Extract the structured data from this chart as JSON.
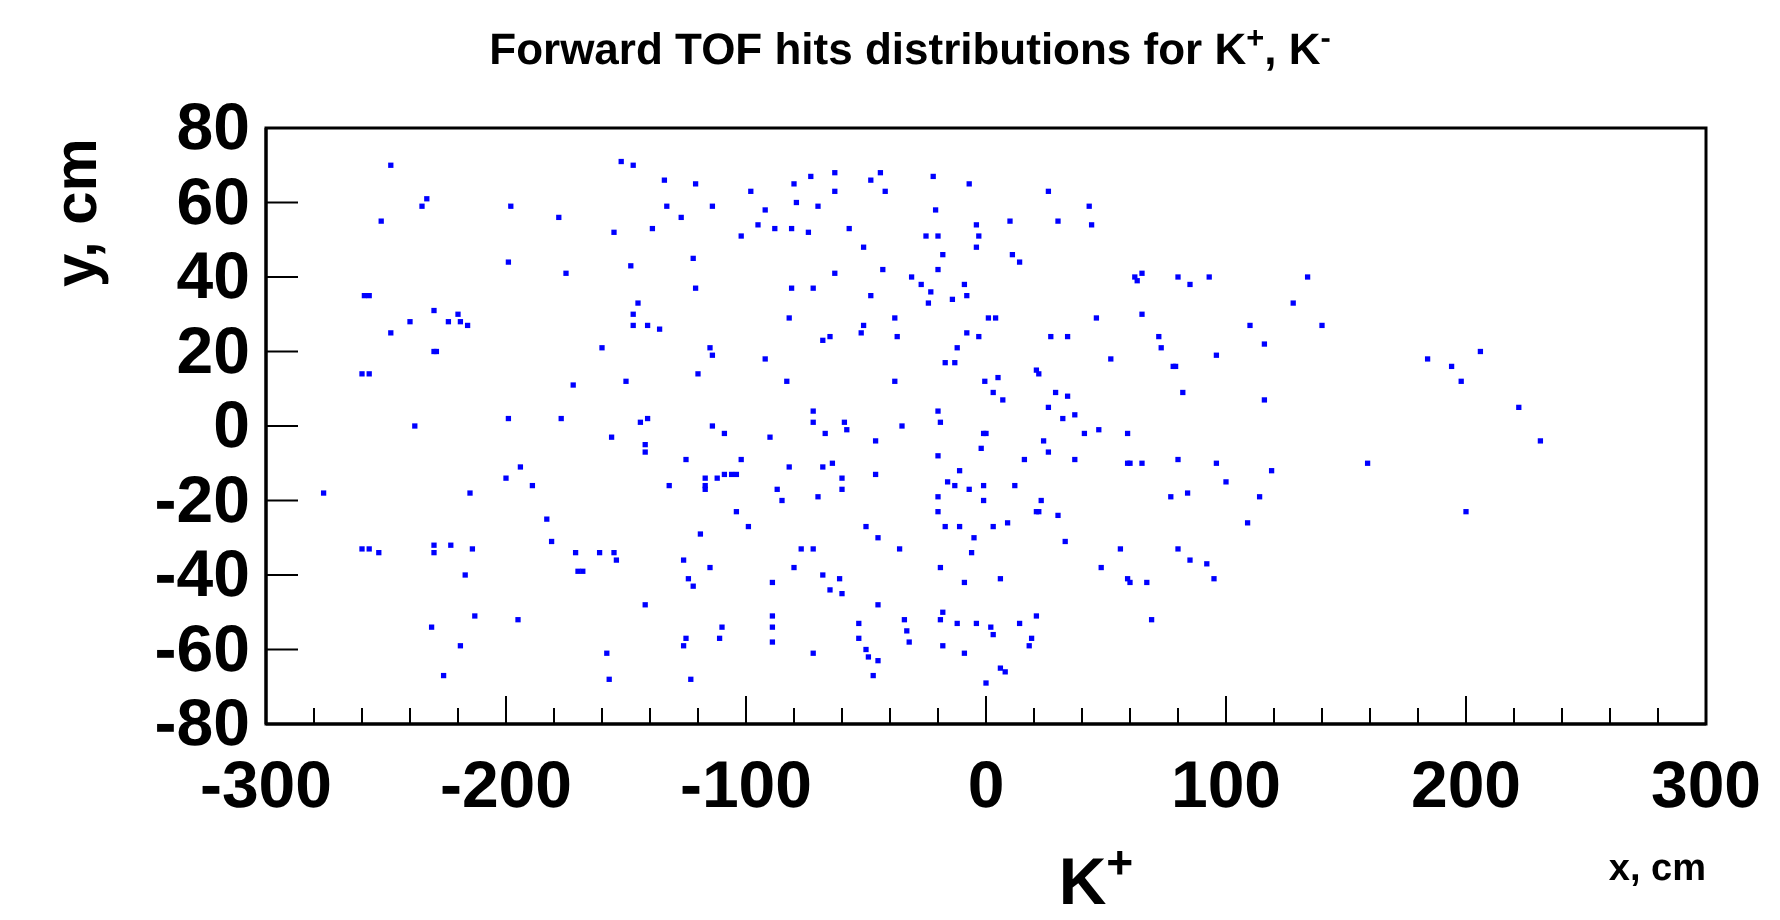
{
  "chart_data": {
    "type": "scatter",
    "title": "Forward TOF hits distributions for K$^{+}$, K$^{-}$",
    "xlabel": "x, cm",
    "ylabel": "y, cm",
    "annotations": [
      "K$^{+}$"
    ],
    "xlim": [
      -300,
      300
    ],
    "ylim": [
      -80,
      80
    ],
    "xticks": [
      -300,
      {
        "value": -280,
        "label": null
      },
      {
        "value": -260,
        "label": null
      },
      {
        "value": -240,
        "label": null
      },
      {
        "value": -220,
        "label": null
      },
      -200,
      {
        "value": -180,
        "label": null
      },
      {
        "value": -160,
        "label": null
      },
      {
        "value": -140,
        "label": null
      },
      {
        "value": -120,
        "label": null
      },
      -100,
      {
        "value": -80,
        "label": null
      },
      {
        "value": -60,
        "label": null
      },
      {
        "value": -40,
        "label": null
      },
      {
        "value": -20,
        "label": null
      },
      0,
      {
        "value": 20,
        "label": null
      },
      {
        "value": 40,
        "label": null
      },
      {
        "value": 60,
        "label": null
      },
      {
        "value": 80,
        "label": null
      },
      100,
      {
        "value": 120,
        "label": null
      },
      {
        "value": 140,
        "label": null
      },
      {
        "value": 160,
        "label": null
      },
      {
        "value": 180,
        "label": null
      },
      200,
      {
        "value": 220,
        "label": null
      },
      {
        "value": 240,
        "label": null
      },
      {
        "value": 260,
        "label": null
      },
      {
        "value": 280,
        "label": null
      },
      300
    ],
    "yticks": [
      -80,
      -60,
      -40,
      -20,
      0,
      20,
      40,
      60,
      80
    ],
    "marker": "square",
    "grid": false,
    "series": [
      {
        "color": "#0000ff",
        "x": [
          -276,
          -259,
          -257,
          -260,
          -257,
          -260,
          -257,
          -253,
          -252,
          -248,
          -248,
          -240,
          -238,
          -235,
          -233,
          -230,
          -229,
          -230,
          -230,
          -230,
          -231,
          -226,
          -224,
          -223,
          -220,
          -219,
          -219,
          -217,
          -216,
          -215,
          -214,
          -213,
          -200,
          -199,
          -199,
          -198,
          -195,
          -194,
          -189,
          -183,
          -181,
          -178,
          -177,
          -175,
          -172,
          -171,
          -170,
          -168,
          -161,
          -160,
          -155,
          -158,
          -157,
          -156,
          -155,
          -154,
          -152,
          -147,
          -150,
          -148,
          -147,
          -145,
          -147,
          -144,
          -141,
          -142,
          -142,
          -142,
          -141,
          -139,
          -136,
          -134,
          -133,
          -132,
          -127,
          -126,
          -126,
          -125,
          -125,
          -124,
          -123,
          -122,
          -122,
          -121,
          -121,
          -120,
          -119,
          -117,
          -117,
          -117,
          -115,
          -115,
          -114,
          -114,
          -114,
          -112,
          -109,
          -109,
          -110,
          -111,
          -106,
          -104,
          -104,
          -102,
          -102,
          -99,
          -98,
          -95,
          -92,
          -92,
          -90,
          -89,
          -89,
          -89,
          -89,
          -88,
          -87,
          -85,
          -83,
          -82,
          -82,
          -81,
          -81,
          -80,
          -80,
          -79,
          -77,
          -74,
          -73,
          -72,
          -72,
          -72,
          -72,
          -72,
          -70,
          -70,
          -68,
          -68,
          -68,
          -67,
          -65,
          -65,
          -64,
          -63,
          -63,
          -63,
          -60,
          -60,
          -61,
          -60,
          -59,
          -58,
          -57,
          -53,
          -53,
          -52,
          -51,
          -51,
          -50,
          -50,
          -49,
          -48,
          -48,
          -47,
          -46,
          -46,
          -45,
          -45,
          -45,
          -44,
          -43,
          -42,
          -38,
          -38,
          -37,
          -36,
          -35,
          -34,
          -33,
          -32,
          -31,
          -27,
          -25,
          -24,
          -23,
          -22,
          -21,
          -20,
          -20,
          -20,
          -20,
          -20,
          -20,
          -19,
          -19,
          -19,
          -18,
          -18,
          -18,
          -17,
          -17,
          -16,
          -14,
          -13,
          -13,
          -12,
          -12,
          -11,
          -11,
          -9,
          -9,
          -8,
          -9,
          -8,
          -7,
          -7,
          -6,
          -5,
          -4,
          -4,
          -3,
          -4,
          -3,
          -2,
          -1,
          -1,
          0,
          -1,
          0,
          -0.5,
          1,
          2,
          3,
          3,
          3,
          4,
          5,
          6,
          6,
          8,
          7,
          9,
          10,
          11,
          14,
          12,
          14,
          16,
          18,
          19,
          21,
          21,
          22,
          21,
          22,
          23,
          24,
          26,
          26,
          26,
          27,
          29,
          30,
          30,
          32,
          33,
          34,
          34,
          37,
          37,
          41,
          43,
          44,
          46,
          47,
          48,
          52,
          56,
          59,
          60,
          59,
          60,
          62,
          65,
          63,
          59,
          65,
          65,
          67,
          69,
          72,
          73,
          77,
          78,
          79,
          80,
          85,
          80,
          80,
          82,
          84,
          85,
          92,
          93,
          95,
          96,
          96,
          100,
          109,
          110,
          114,
          116,
          116,
          119,
          128,
          134,
          140,
          159,
          184,
          194,
          198,
          200,
          206,
          222,
          231
        ],
        "values": [
          -18,
          35,
          35,
          14,
          14,
          -33,
          -33,
          -34,
          55,
          70,
          25,
          28,
          0,
          59,
          61,
          31,
          20,
          20,
          -32,
          -34,
          -54,
          -67,
          28,
          -32,
          30,
          28,
          -59,
          -40,
          27,
          -18,
          -33,
          -51,
          -14,
          2,
          44,
          59,
          -52,
          -11,
          -16,
          -25,
          -31,
          56,
          2,
          41,
          11,
          -34,
          -39,
          -39,
          -34,
          21,
          -34,
          -61,
          -68,
          -3,
          52,
          -36,
          71,
          70,
          12,
          43,
          27,
          33,
          30,
          1,
          2,
          -7,
          -5,
          -48,
          27,
          53,
          26,
          66,
          59,
          -16,
          56,
          -36,
          -59,
          -57,
          -9,
          -41,
          -68,
          -43,
          45,
          65,
          37,
          14,
          -29,
          -16,
          -17,
          -14,
          -38,
          21,
          19,
          0,
          59,
          -14,
          -13,
          -2,
          -54,
          -57,
          -13,
          -13,
          -23,
          -9,
          51,
          -27,
          63,
          54,
          58,
          18,
          -3,
          -42,
          -51,
          -54,
          -58,
          53,
          -17,
          -20,
          12,
          -11,
          29,
          37,
          53,
          65,
          -38,
          60,
          -33,
          52,
          67,
          4,
          37,
          1,
          -33,
          -61,
          59,
          -19,
          23,
          -40,
          -11,
          -2,
          24,
          -44,
          -10,
          41,
          68,
          63,
          -14,
          -17,
          -41,
          -45,
          1,
          -1,
          53,
          -53,
          -57,
          25,
          27,
          48,
          -60,
          -27,
          -62,
          66,
          35,
          -67,
          -4,
          -13,
          -30,
          -63,
          -48,
          68,
          42,
          63,
          29,
          12,
          24,
          -33,
          0,
          -52,
          -55,
          -58,
          40,
          38,
          51,
          33,
          36,
          67,
          58,
          51,
          42,
          4,
          -8,
          -19,
          -23,
          1,
          -38,
          -52,
          -50,
          -59,
          46,
          17,
          -27,
          -15,
          34,
          17,
          -16,
          -53,
          21,
          -12,
          -27,
          -42,
          38,
          35,
          -61,
          25,
          65,
          -17,
          -34,
          -30,
          -53,
          54,
          51,
          48,
          24,
          -6,
          -16,
          -2,
          -2,
          -20,
          -69,
          12,
          29,
          -54,
          -56,
          9,
          -27,
          29,
          13,
          -41,
          -65,
          -66,
          7,
          -26,
          55,
          46,
          44,
          -16,
          -53,
          -9,
          -59,
          -57,
          -51,
          15,
          14,
          -23,
          -23,
          -20,
          -4,
          5,
          63,
          -7,
          24,
          9,
          55,
          -24,
          2,
          -31,
          24,
          8,
          -9,
          3,
          -2,
          59,
          54,
          29,
          -1,
          -38,
          18,
          -33,
          -10,
          -10,
          -41,
          -42,
          40,
          41,
          39,
          -2,
          30,
          -10,
          -42,
          -52,
          24,
          21,
          -19,
          16,
          16,
          40,
          38,
          -9,
          -33,
          9,
          -18,
          -36,
          -37,
          40,
          -41,
          -10,
          19,
          -15,
          -26,
          27,
          -19,
          22,
          7,
          -12,
          33,
          40,
          27,
          -10,
          18,
          16,
          12,
          -23,
          20,
          5,
          -4
        ]
      }
    ]
  }
}
